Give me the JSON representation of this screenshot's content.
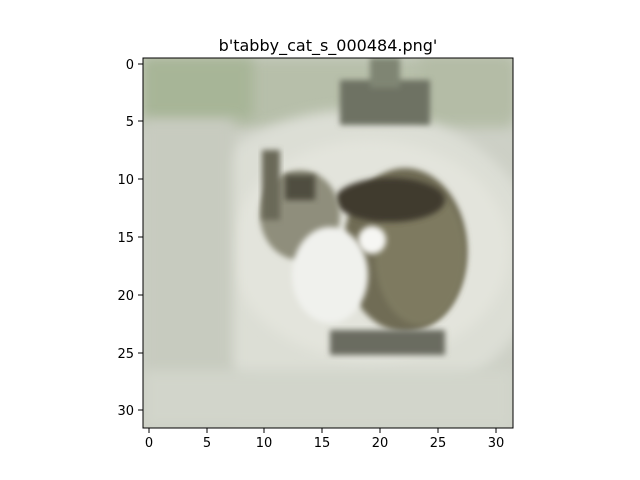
{
  "figure": {
    "title": "b'tabby_cat_s_000484.png'",
    "grid": false,
    "x_ticks": [
      "0",
      "5",
      "10",
      "15",
      "20",
      "25",
      "30"
    ],
    "y_ticks": [
      "0",
      "5",
      "10",
      "15",
      "20",
      "25",
      "30"
    ],
    "xlim": [
      -0.5,
      31.5
    ],
    "ylim": [
      31.5,
      -0.5
    ]
  },
  "image": {
    "subject": "low-resolution tabby cat curled on a pale surface",
    "pixel_grid": "32x32",
    "palette": {
      "background": "#c9cdc1",
      "surface_light": "#dfe0d8",
      "fur_dark": "#4c4a3e",
      "fur_mid": "#7d7a62",
      "fur_brown": "#3e3328",
      "chest_white": "#f2f3f0",
      "green_tint": "#a9b59a"
    }
  }
}
